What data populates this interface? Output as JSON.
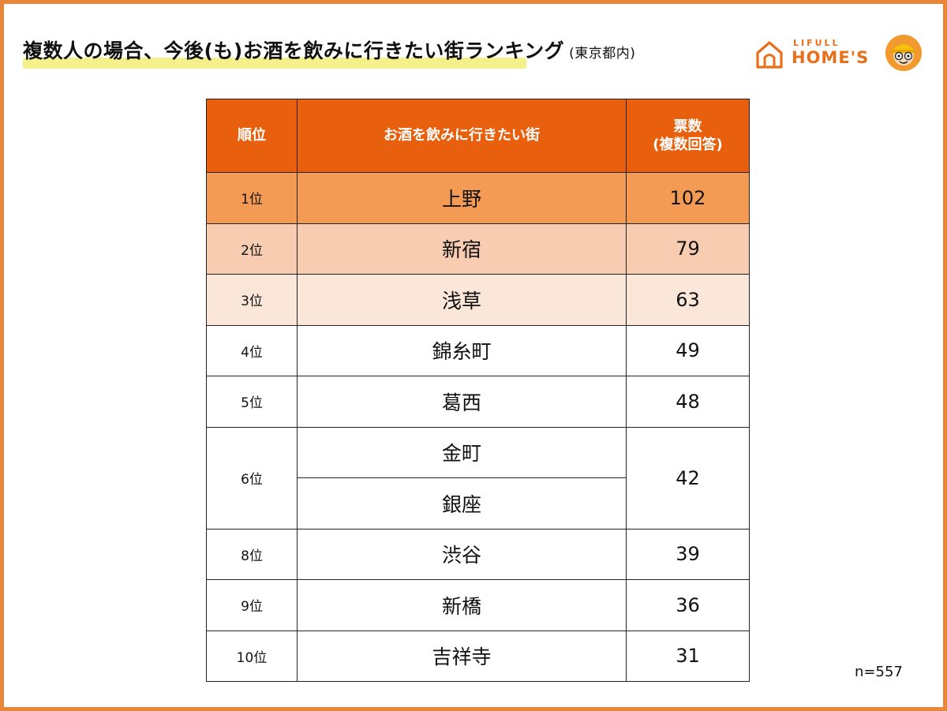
{
  "title": {
    "main": "複数人の場合、今後(も)お酒を飲みに行きたい街ランキング",
    "sub": "(東京都内)"
  },
  "logo": {
    "line1": "LIFULL",
    "line2": "HOME'S"
  },
  "colors": {
    "accent": "#e8600e",
    "frame": "#e8863a",
    "highlight": "#f6f08a",
    "rank1_bg": "#f39a55",
    "rank2_bg": "#f7ccb0",
    "rank3_bg": "#fbe6da"
  },
  "chart_data": {
    "type": "table",
    "columns": [
      "順位",
      "お酒を飲みに行きたい街",
      "票数\n(複数回答)"
    ],
    "rows": [
      {
        "rank": "1位",
        "towns": [
          "上野"
        ],
        "votes": "102"
      },
      {
        "rank": "2位",
        "towns": [
          "新宿"
        ],
        "votes": "79"
      },
      {
        "rank": "3位",
        "towns": [
          "浅草"
        ],
        "votes": "63"
      },
      {
        "rank": "4位",
        "towns": [
          "錦糸町"
        ],
        "votes": "49"
      },
      {
        "rank": "5位",
        "towns": [
          "葛西"
        ],
        "votes": "48"
      },
      {
        "rank": "6位",
        "towns": [
          "金町",
          "銀座"
        ],
        "votes": "42"
      },
      {
        "rank": "8位",
        "towns": [
          "渋谷"
        ],
        "votes": "39"
      },
      {
        "rank": "9位",
        "towns": [
          "新橋"
        ],
        "votes": "36"
      },
      {
        "rank": "10位",
        "towns": [
          "吉祥寺"
        ],
        "votes": "31"
      }
    ],
    "note": "n=557"
  }
}
